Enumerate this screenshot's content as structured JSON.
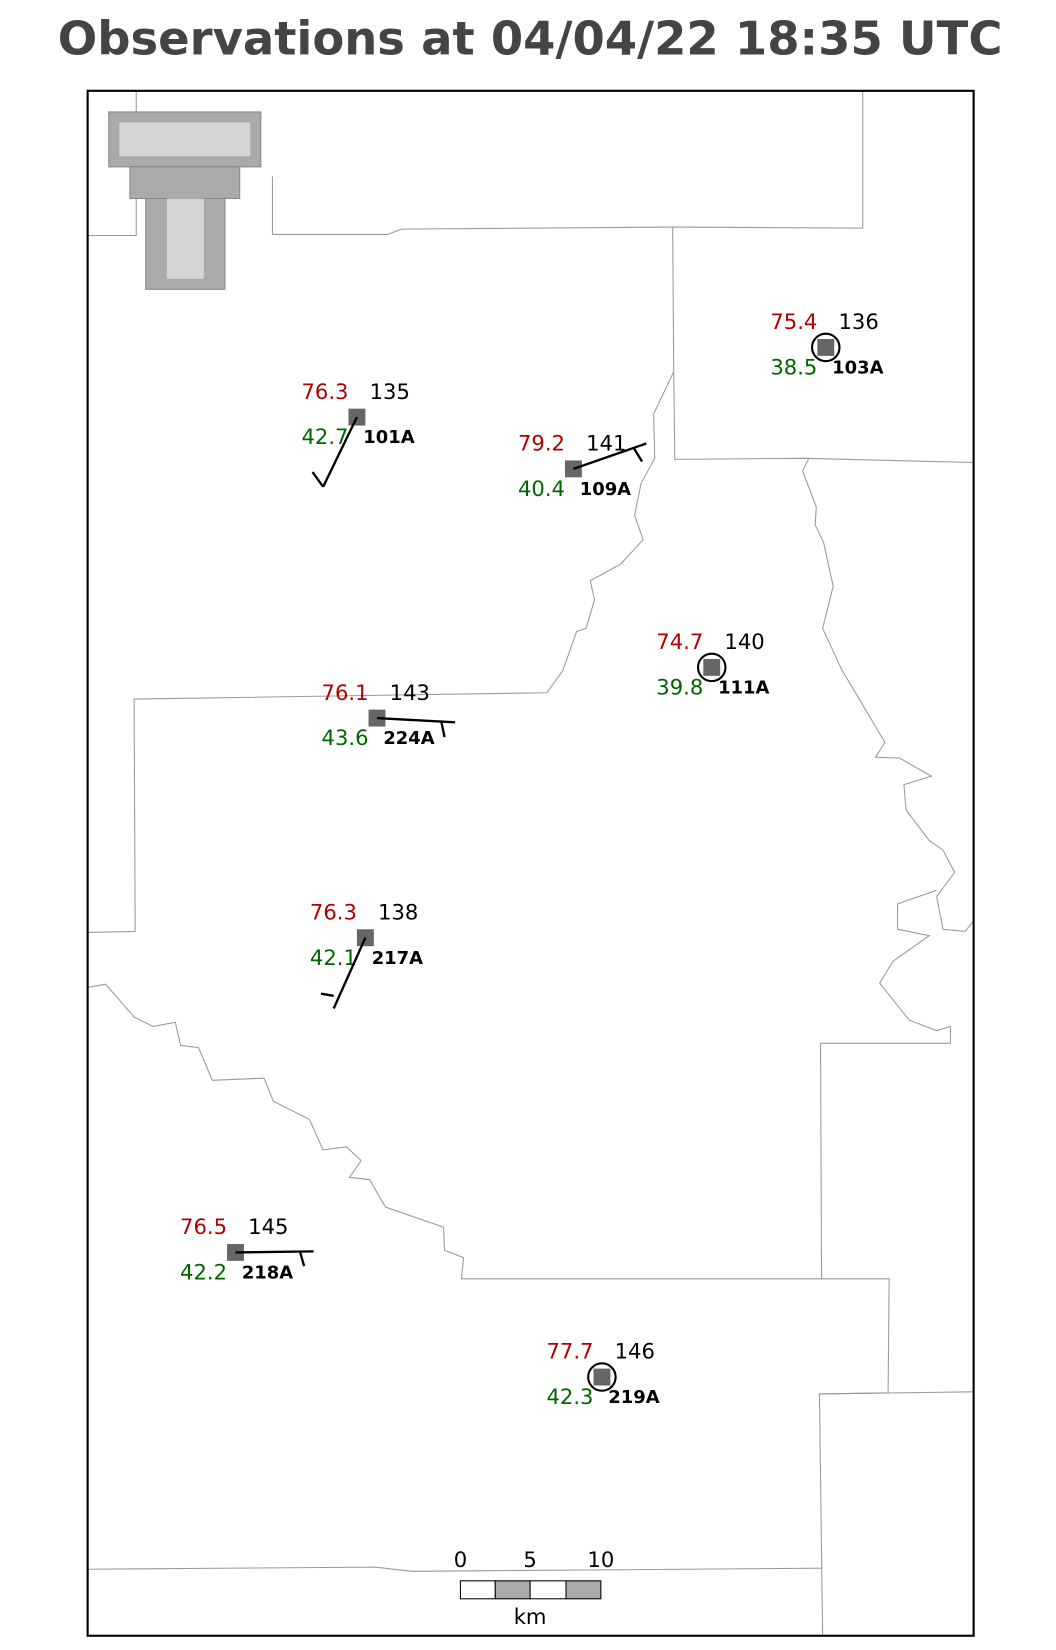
{
  "title": "Observations at 04/04/22 18:35 UTC",
  "stations": [
    {
      "id": "103A",
      "temperature": 75.4,
      "dewpoint": 38.5,
      "pressure": 136
    },
    {
      "id": "101A",
      "temperature": 76.3,
      "dewpoint": 42.7,
      "pressure": 135
    },
    {
      "id": "109A",
      "temperature": 79.2,
      "dewpoint": 40.4,
      "pressure": 141
    },
    {
      "id": "111A",
      "temperature": 74.7,
      "dewpoint": 39.8,
      "pressure": 140
    },
    {
      "id": "224A",
      "temperature": 76.1,
      "dewpoint": 43.6,
      "pressure": 143
    },
    {
      "id": "217A",
      "temperature": 76.3,
      "dewpoint": 42.1,
      "pressure": 138
    },
    {
      "id": "218A",
      "temperature": 76.5,
      "dewpoint": 42.2,
      "pressure": 145
    },
    {
      "id": "219A",
      "temperature": 77.7,
      "dewpoint": 42.3,
      "pressure": 146
    }
  ],
  "scale_bar": {
    "labels": [
      0,
      5,
      10
    ],
    "unit": "km"
  }
}
